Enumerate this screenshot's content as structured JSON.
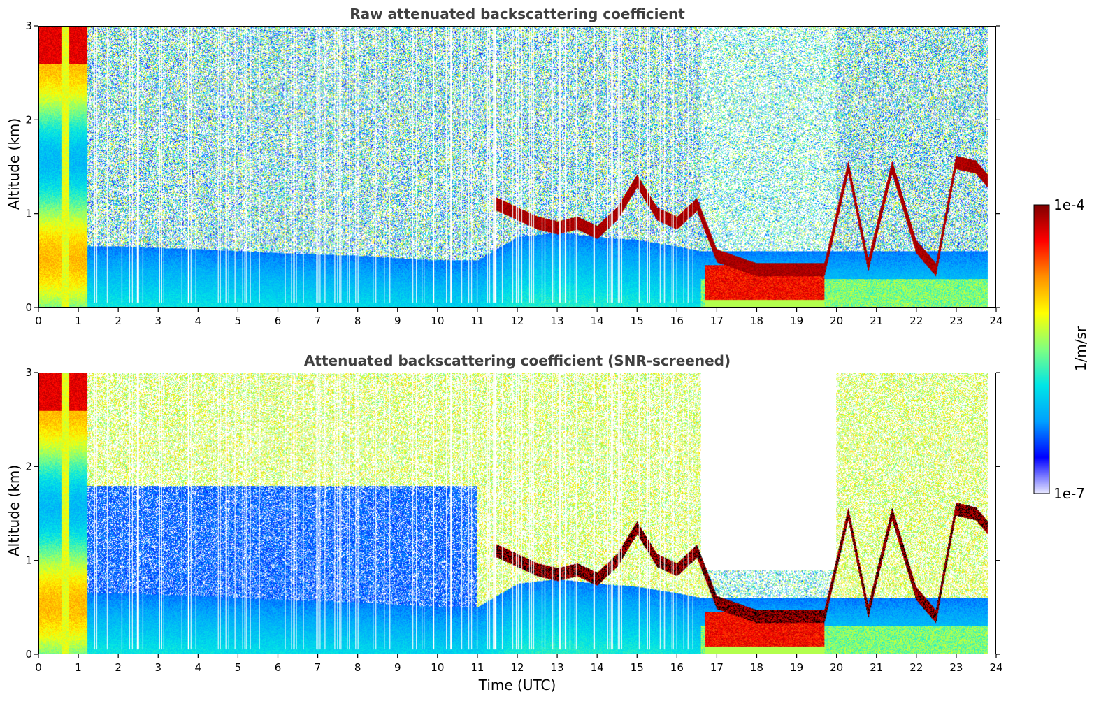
{
  "chart_data": [
    {
      "type": "heatmap",
      "title": "Raw attenuated backscattering coefficient",
      "xlabel": "",
      "ylabel": "Altitude (km)",
      "xlim": [
        0,
        24
      ],
      "ylim": [
        0,
        3
      ],
      "x_ticks": [
        "0",
        "1",
        "2",
        "3",
        "4",
        "5",
        "6",
        "7",
        "8",
        "9",
        "10",
        "11",
        "12",
        "13",
        "14",
        "15",
        "16",
        "17",
        "18",
        "19",
        "20",
        "21",
        "22",
        "23",
        "24"
      ],
      "y_ticks": [
        "0",
        "1",
        "2",
        "3"
      ],
      "color_scale": "log",
      "value_range": [
        "1e-7",
        "1e-4"
      ],
      "features": {
        "boundary_layer_top_km": [
          [
            0,
            0.65
          ],
          [
            2,
            0.65
          ],
          [
            4,
            0.62
          ],
          [
            6,
            0.58
          ],
          [
            8,
            0.55
          ],
          [
            10,
            0.5
          ],
          [
            11,
            0.5
          ],
          [
            12,
            0.75
          ],
          [
            13,
            0.8
          ],
          [
            14,
            0.75
          ],
          [
            15,
            0.72
          ],
          [
            16,
            0.65
          ],
          [
            16.6,
            0.6
          ]
        ],
        "cloud_base_km": [
          [
            11.5,
            1.1
          ],
          [
            12,
            1.0
          ],
          [
            12.5,
            0.9
          ],
          [
            13,
            0.85
          ],
          [
            13.5,
            0.9
          ],
          [
            14,
            0.8
          ],
          [
            14.5,
            1.0
          ],
          [
            15,
            1.35
          ],
          [
            15.5,
            1.0
          ],
          [
            16,
            0.9
          ],
          [
            16.5,
            1.1
          ],
          [
            17,
            0.55
          ],
          [
            18,
            0.4
          ],
          [
            19,
            0.4
          ],
          [
            19.7,
            0.4
          ],
          [
            20.3,
            1.5
          ],
          [
            20.8,
            0.45
          ],
          [
            21.4,
            1.5
          ],
          [
            22,
            0.65
          ],
          [
            22.5,
            0.4
          ],
          [
            23,
            1.55
          ],
          [
            23.5,
            1.5
          ],
          [
            23.8,
            1.35
          ]
        ],
        "heavy_low_cloud_hours": [
          16.7,
          19.7
        ]
      }
    },
    {
      "type": "heatmap",
      "title": "Attenuated backscattering coefficient (SNR-screened)",
      "xlabel": "Time (UTC)",
      "ylabel": "Altitude (km)",
      "xlim": [
        0,
        24
      ],
      "ylim": [
        0,
        3
      ],
      "x_ticks": [
        "0",
        "1",
        "2",
        "3",
        "4",
        "5",
        "6",
        "7",
        "8",
        "9",
        "10",
        "11",
        "12",
        "13",
        "14",
        "15",
        "16",
        "17",
        "18",
        "19",
        "20",
        "21",
        "22",
        "23",
        "24"
      ],
      "y_ticks": [
        "0",
        "1",
        "2",
        "3"
      ],
      "color_scale": "log",
      "value_range": [
        "1e-7",
        "1e-4"
      ],
      "features": {
        "screened_clear_region": {
          "hours": [
            17,
            20
          ],
          "altitude_km": [
            0.9,
            3.0
          ]
        },
        "overflow_color": "#000000"
      }
    }
  ],
  "colorbar": {
    "label": "1/m/sr",
    "max_label": "1e-4",
    "min_label": "1e-7",
    "colormap": "jet",
    "colors": [
      "#e8e8ff",
      "#0000ff",
      "#00a0ff",
      "#00e6e6",
      "#80ff80",
      "#ffff00",
      "#ff9000",
      "#ff0000",
      "#800000"
    ]
  },
  "colors": {
    "title": "#404040",
    "axis": "#000000",
    "background": "#ffffff"
  }
}
